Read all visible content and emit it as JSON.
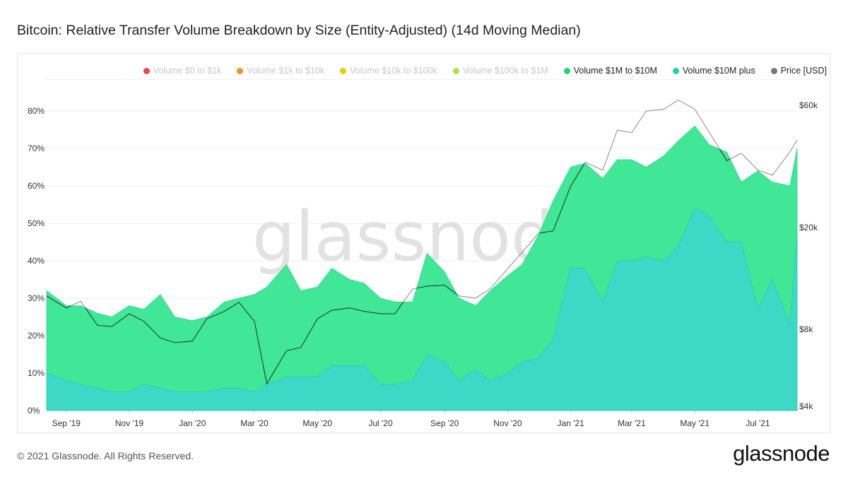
{
  "title": "Bitcoin: Relative Transfer Volume Breakdown by Size (Entity-Adjusted) (14d Moving Median)",
  "footer": "© 2021 Glassnode. All Rights Reserved.",
  "logo": "glassnode",
  "watermark": "glassnode",
  "legend": [
    {
      "label": "Volume $0 to $1k",
      "color": "#f0424e",
      "active": false
    },
    {
      "label": "Volume $1k to $10k",
      "color": "#f7902b",
      "active": false
    },
    {
      "label": "Volume $10k to $100k",
      "color": "#f5c800",
      "active": false
    },
    {
      "label": "Volume $100k to $1M",
      "color": "#a8e63a",
      "active": false
    },
    {
      "label": "Volume $1M to $10M",
      "color": "#1fd672",
      "active": true
    },
    {
      "label": "Volume $10M plus",
      "color": "#1ccfb9",
      "active": true
    },
    {
      "label": "Price [USD]",
      "color": "#777777",
      "active": true
    }
  ],
  "chart_data": {
    "type": "area",
    "stacked": true,
    "title": "Bitcoin: Relative Transfer Volume Breakdown by Size (Entity-Adjusted) (14d Moving Median)",
    "y_ticks": [
      "0%",
      "10%",
      "20%",
      "30%",
      "40%",
      "50%",
      "60%",
      "70%",
      "80%"
    ],
    "y2_ticks": [
      "$4k",
      "$8k",
      "$20k",
      "$60k"
    ],
    "y2_scale": "log",
    "x_ticks": [
      "Sep '19",
      "Nov '19",
      "Jan '20",
      "Mar '20",
      "May '20",
      "Jul '20",
      "Sep '20",
      "Nov '20",
      "Jan '21",
      "Mar '21",
      "May '21",
      "Jul '21"
    ],
    "grid": true,
    "legend_position": "top",
    "x": [
      "2019-08-13",
      "2019-09-01",
      "2019-09-15",
      "2019-10-01",
      "2019-10-15",
      "2019-11-01",
      "2019-11-15",
      "2019-12-01",
      "2019-12-15",
      "2020-01-01",
      "2020-01-15",
      "2020-02-01",
      "2020-02-15",
      "2020-03-01",
      "2020-03-13",
      "2020-04-01",
      "2020-04-15",
      "2020-05-01",
      "2020-05-15",
      "2020-06-01",
      "2020-06-15",
      "2020-07-01",
      "2020-07-15",
      "2020-08-01",
      "2020-08-15",
      "2020-09-01",
      "2020-09-15",
      "2020-10-01",
      "2020-10-15",
      "2020-11-01",
      "2020-11-15",
      "2020-12-01",
      "2020-12-15",
      "2021-01-01",
      "2021-01-15",
      "2021-02-01",
      "2021-02-15",
      "2021-03-01",
      "2021-03-15",
      "2021-04-01",
      "2021-04-15",
      "2021-05-01",
      "2021-05-15",
      "2021-06-01",
      "2021-06-15",
      "2021-07-01",
      "2021-07-15",
      "2021-08-01",
      "2021-08-08"
    ],
    "series": [
      {
        "name": "Volume $10M plus",
        "unit": "%",
        "values": [
          10,
          8,
          7,
          6,
          5,
          5,
          7,
          6,
          5,
          5,
          5,
          6,
          6,
          5,
          7,
          9,
          9,
          9,
          12,
          12,
          12,
          7,
          7,
          8,
          15,
          13,
          8,
          11,
          8,
          10,
          13,
          14,
          19,
          38,
          38,
          29,
          40,
          40,
          41,
          40,
          44,
          54,
          52,
          45,
          45,
          27,
          35,
          23,
          47
        ]
      },
      {
        "name": "Volume $1M to $10M",
        "unit": "%",
        "values": [
          22,
          20,
          21,
          20,
          20,
          23,
          20,
          25,
          20,
          19,
          20,
          23,
          24,
          26,
          26,
          30,
          23,
          24,
          26,
          23,
          22,
          23,
          22,
          21,
          27,
          24,
          22,
          17,
          24,
          26,
          26,
          33,
          37,
          27,
          28,
          33,
          27,
          27,
          24,
          28,
          28,
          22,
          19,
          24,
          16,
          37,
          26,
          37,
          23
        ]
      },
      {
        "name": "Price [USD]",
        "unit": "USD",
        "values": [
          10800,
          9700,
          10300,
          8300,
          8200,
          9200,
          8600,
          7400,
          7100,
          7200,
          8800,
          9400,
          10200,
          8600,
          4900,
          6600,
          6800,
          8800,
          9500,
          9700,
          9400,
          9200,
          9200,
          11500,
          11800,
          11900,
          10800,
          10600,
          11500,
          13800,
          16000,
          19000,
          19400,
          29000,
          36000,
          33500,
          48000,
          47000,
          57000,
          58000,
          63000,
          58000,
          47000,
          36500,
          39000,
          33500,
          32000,
          39500,
          44000
        ]
      }
    ]
  }
}
